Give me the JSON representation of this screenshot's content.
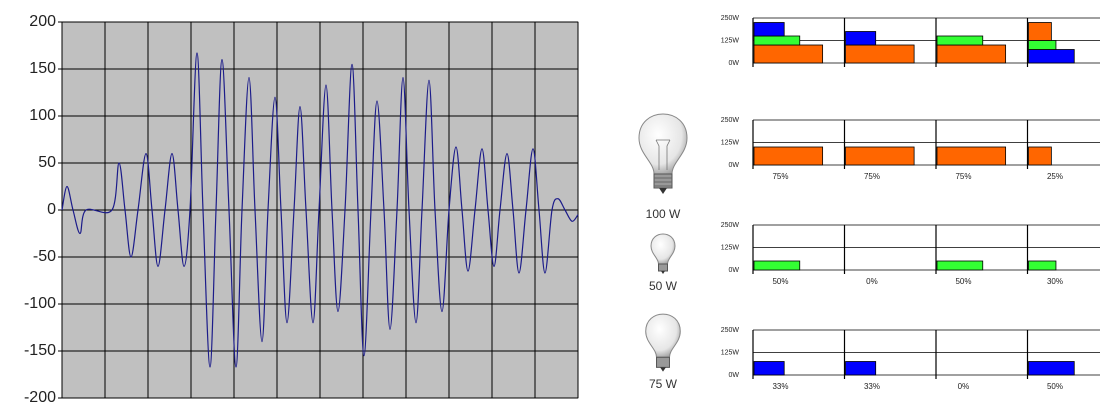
{
  "chart_data": [
    {
      "type": "line",
      "color": "#1c1c8a",
      "ylim": [
        -200,
        200
      ],
      "yticks": [
        -200,
        -150,
        -100,
        -50,
        0,
        50,
        100,
        150,
        200
      ],
      "xlim": [
        0,
        516
      ],
      "xticks": [
        0,
        43,
        86,
        129,
        172,
        215,
        258,
        301,
        344,
        387,
        430,
        473,
        516
      ],
      "grid": true,
      "x": [
        0,
        5,
        11,
        18,
        24,
        50,
        57,
        63,
        69,
        76,
        84,
        90,
        96,
        103,
        110,
        116,
        122,
        128,
        135,
        141,
        148,
        154,
        160,
        167,
        174,
        180,
        187,
        193,
        200,
        206,
        213,
        219,
        225,
        232,
        238,
        244,
        251,
        257,
        264,
        270,
        276,
        283,
        290,
        296,
        302,
        309,
        315,
        322,
        328,
        335,
        341,
        347,
        354,
        360,
        367,
        373,
        380,
        387,
        394,
        400,
        406,
        413,
        420,
        426,
        432,
        438,
        445,
        451,
        457,
        464,
        471,
        477,
        483,
        490,
        496,
        503,
        510,
        516
      ],
      "values": [
        0,
        25,
        0,
        -25,
        0,
        0,
        50,
        0,
        -50,
        0,
        60,
        0,
        -60,
        0,
        60,
        0,
        -60,
        0,
        167,
        0,
        -167,
        0,
        160,
        0,
        -167,
        0,
        141,
        0,
        -140,
        0,
        120,
        0,
        -120,
        0,
        110,
        0,
        -120,
        0,
        133,
        0,
        -108,
        0,
        155,
        0,
        -155,
        0,
        116,
        0,
        -127,
        0,
        141,
        0,
        -120,
        0,
        138,
        0,
        -108,
        0,
        67,
        0,
        -65,
        0,
        65,
        0,
        -60,
        0,
        60,
        0,
        -67,
        0,
        65,
        0,
        -67,
        0,
        12,
        0,
        -12,
        -5
      ]
    },
    {
      "type": "stacked-bar",
      "ylim": [
        0,
        250
      ],
      "yticks": [
        {
          "value": 0,
          "label": "0W"
        },
        {
          "value": 125,
          "label": "125W"
        },
        {
          "value": 250,
          "label": "250W"
        }
      ],
      "panels": [
        {
          "segments": [
            {
              "power": 100,
              "duty": 75,
              "color": "#ff6600"
            },
            {
              "power": 50,
              "duty": 50,
              "color": "#33ff33"
            },
            {
              "power": 75,
              "duty": 33,
              "color": "#0000ff"
            }
          ]
        },
        {
          "segments": [
            {
              "power": 100,
              "duty": 75,
              "color": "#ff6600"
            },
            {
              "power": 75,
              "duty": 33,
              "color": "#0000ff"
            }
          ]
        },
        {
          "segments": [
            {
              "power": 100,
              "duty": 75,
              "color": "#ff6600"
            },
            {
              "power": 50,
              "duty": 50,
              "color": "#33ff33"
            }
          ]
        },
        {
          "segments": [
            {
              "power": 75,
              "duty": 50,
              "color": "#0000ff"
            },
            {
              "power": 50,
              "duty": 30,
              "color": "#33ff33"
            },
            {
              "power": 100,
              "duty": 25,
              "color": "#ff6600"
            }
          ]
        }
      ]
    },
    {
      "type": "bar",
      "name": "100 W",
      "power": 100,
      "color": "#ff6600",
      "ylim": [
        0,
        250
      ],
      "yticks": [
        {
          "value": 0,
          "label": "0W"
        },
        {
          "value": 125,
          "label": "125W"
        },
        {
          "value": 250,
          "label": "250W"
        }
      ],
      "values": [
        75,
        75,
        75,
        25
      ],
      "value_labels": [
        "75%",
        "75%",
        "75%",
        "25%"
      ]
    },
    {
      "type": "bar",
      "name": "50 W",
      "power": 50,
      "color": "#33ff33",
      "ylim": [
        0,
        250
      ],
      "yticks": [
        {
          "value": 0,
          "label": "0W"
        },
        {
          "value": 125,
          "label": "125W"
        },
        {
          "value": 250,
          "label": "250W"
        }
      ],
      "values": [
        50,
        0,
        50,
        30
      ],
      "value_labels": [
        "50%",
        "0%",
        "50%",
        "30%"
      ]
    },
    {
      "type": "bar",
      "name": "75 W",
      "power": 75,
      "color": "#0000ff",
      "ylim": [
        0,
        250
      ],
      "yticks": [
        {
          "value": 0,
          "label": "0W"
        },
        {
          "value": 125,
          "label": "125W"
        },
        {
          "value": 250,
          "label": "250W"
        }
      ],
      "values": [
        33,
        33,
        0,
        50
      ],
      "value_labels": [
        "33%",
        "33%",
        "0%",
        "50%"
      ]
    }
  ]
}
